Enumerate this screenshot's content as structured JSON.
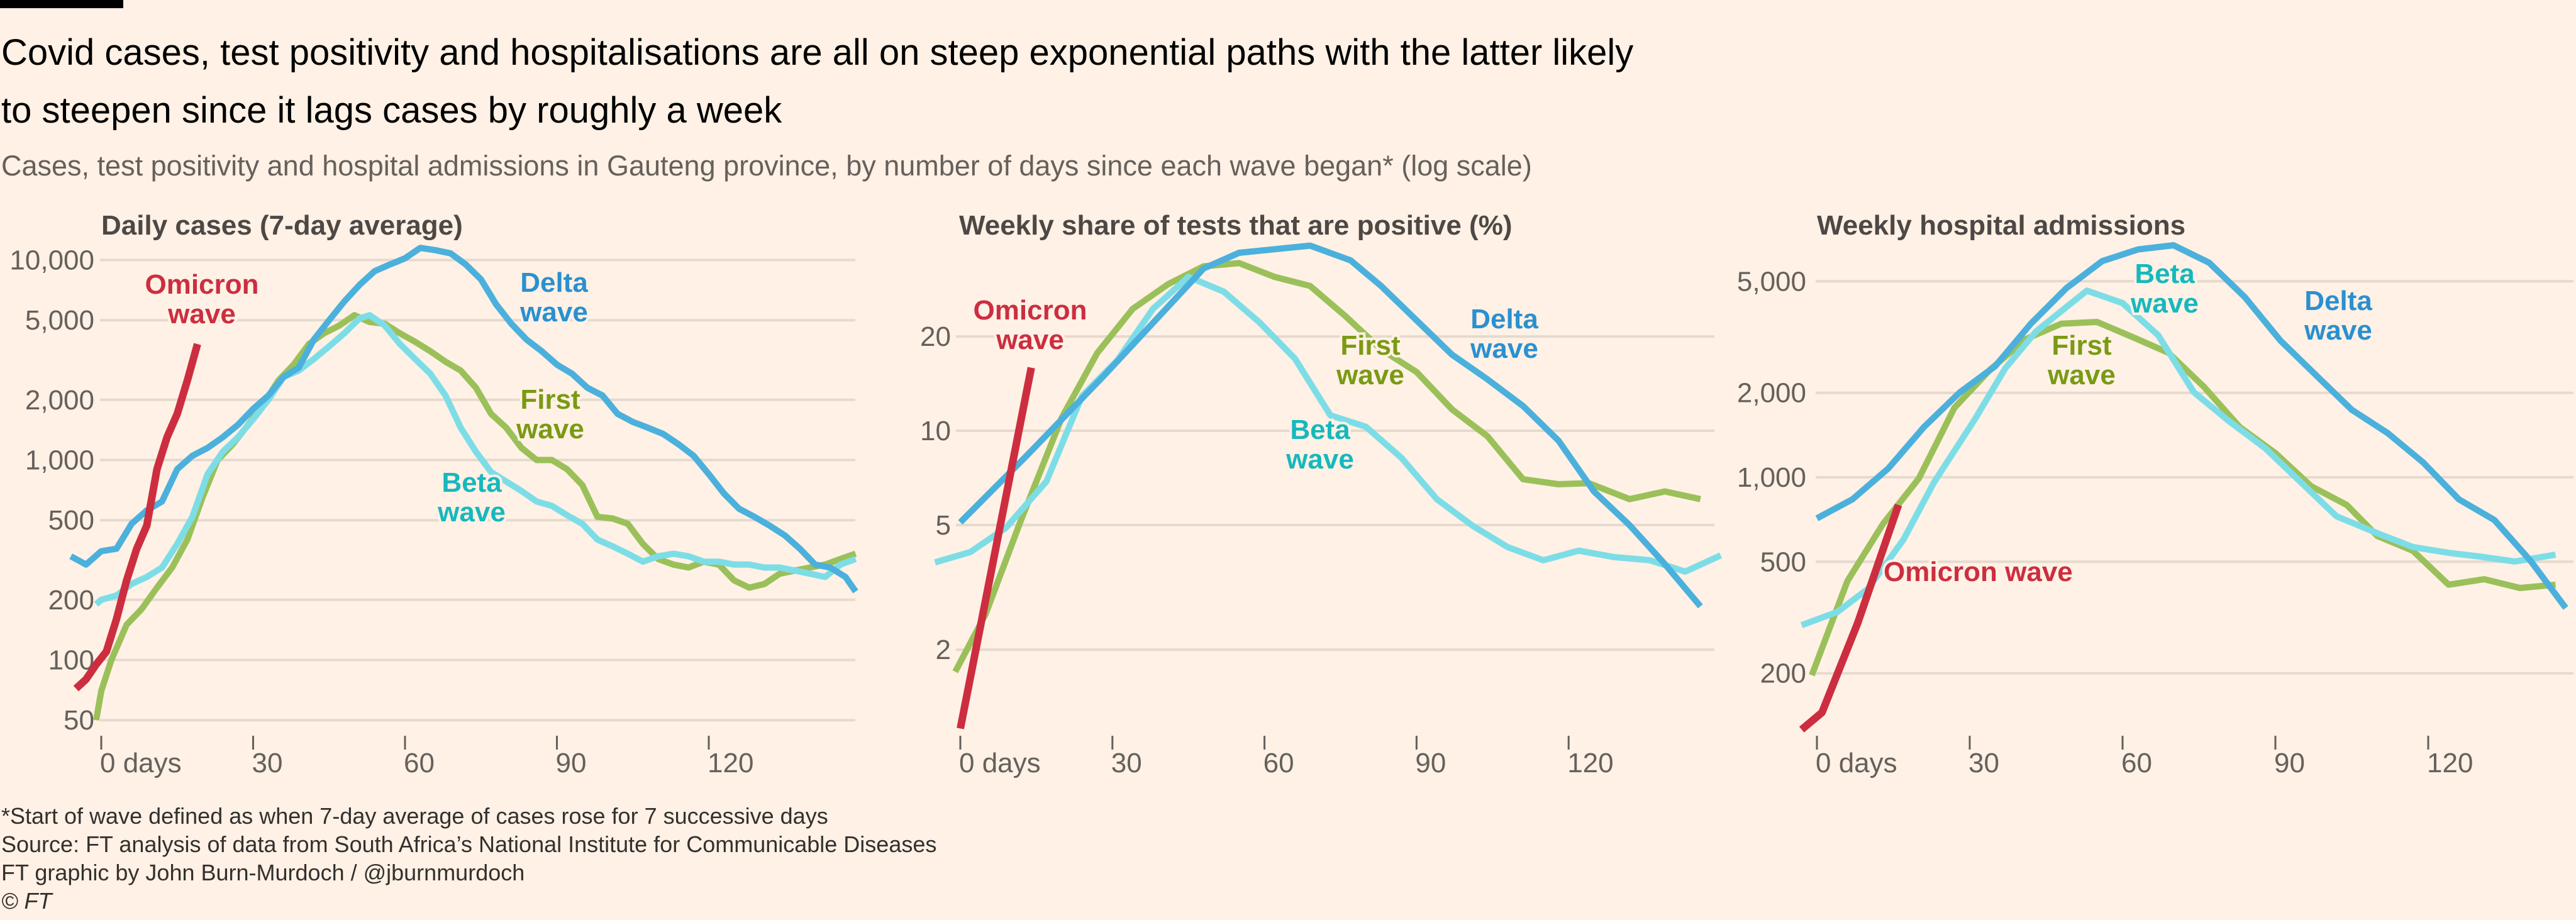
{
  "header": {
    "title": "Covid cases, test positivity and hospitalisations are all on steep exponential paths with the latter likely to steepen since it lags cases by roughly a week",
    "subtitle": "Cases, test positivity and hospital admissions in Gauteng province, by number of days since each wave began* (log scale)"
  },
  "footer": {
    "note": "*Start of wave defined as when 7-day average of cases rose for 7 successive days",
    "source": "Source: FT analysis of data from South Africa’s National Institute for Communicable Diseases",
    "credit": "FT graphic by John Burn-Murdoch / @jburnmurdoch",
    "copyright": "© FT"
  },
  "colors": {
    "background": "#fff1e5",
    "grid": "#e6d9ce",
    "delta_line": "#4bb0dc",
    "delta_label": "#2a90d0",
    "beta_line": "#7ddde7",
    "beta_label": "#16b8bd",
    "first_line": "#9bc05a",
    "first_label": "#7a9a14",
    "omicron_line": "#cc2e40",
    "omicron_label": "#cc2e40"
  },
  "chart_data": [
    {
      "type": "line",
      "title": "Daily cases (7-day average)",
      "yscale": "log",
      "ylim": [
        45,
        12000
      ],
      "yticks": [
        10000,
        5000,
        2000,
        1000,
        500,
        200,
        100,
        50
      ],
      "ytick_labels": [
        "10,000",
        "5,000",
        "2,000",
        "1,000",
        "500",
        "200",
        "100",
        "50"
      ],
      "xticks": [
        0,
        30,
        60,
        90,
        120
      ],
      "xtick_labels": [
        "0 days",
        "30",
        "60",
        "90",
        "120"
      ],
      "grid": true,
      "series": [
        {
          "name": "First wave",
          "key": "first",
          "label_lines": [
            "First",
            "wave"
          ],
          "x": [
            -1,
            0,
            2,
            5,
            8,
            11,
            14,
            17,
            20,
            23,
            26,
            29,
            32,
            35,
            38,
            41,
            44,
            47,
            50,
            53,
            56,
            59,
            62,
            65,
            68,
            71,
            74,
            77,
            80,
            83,
            86,
            89,
            92,
            95,
            98,
            101,
            104,
            107,
            110,
            113,
            116,
            119,
            122,
            125,
            128,
            131,
            134,
            137,
            140,
            143,
            146,
            149
          ],
          "y": [
            50,
            70,
            100,
            150,
            180,
            230,
            290,
            400,
            650,
            1000,
            1200,
            1500,
            1900,
            2500,
            3000,
            3800,
            4300,
            4700,
            5300,
            4900,
            4800,
            4300,
            3900,
            3500,
            3100,
            2800,
            2300,
            1700,
            1450,
            1150,
            1000,
            1000,
            900,
            750,
            520,
            510,
            480,
            380,
            320,
            300,
            290,
            310,
            300,
            250,
            230,
            240,
            270,
            280,
            290,
            300,
            320,
            340
          ]
        },
        {
          "name": "Beta wave",
          "key": "beta",
          "label_lines": [
            "Beta",
            "wave"
          ],
          "x": [
            -1,
            0,
            3,
            6,
            9,
            12,
            15,
            18,
            21,
            24,
            27,
            30,
            33,
            36,
            39,
            42,
            45,
            48,
            51,
            53,
            56,
            59,
            62,
            65,
            68,
            71,
            74,
            77,
            80,
            83,
            86,
            89,
            92,
            95,
            98,
            101,
            104,
            107,
            110,
            113,
            116,
            119,
            122,
            125,
            128,
            131,
            134,
            137,
            140,
            143,
            146,
            149
          ],
          "y": [
            190,
            200,
            210,
            240,
            260,
            290,
            380,
            520,
            850,
            1100,
            1300,
            1600,
            2000,
            2600,
            2800,
            3200,
            3700,
            4300,
            5100,
            5300,
            4700,
            3800,
            3200,
            2700,
            2100,
            1450,
            1100,
            870,
            780,
            700,
            620,
            590,
            530,
            480,
            400,
            370,
            340,
            310,
            330,
            340,
            330,
            310,
            310,
            300,
            300,
            290,
            290,
            280,
            270,
            260,
            300,
            320
          ]
        },
        {
          "name": "Delta wave",
          "key": "delta",
          "label_lines": [
            "Delta",
            "wave"
          ],
          "x": [
            -6,
            -3,
            0,
            3,
            6,
            9,
            12,
            15,
            18,
            21,
            24,
            27,
            30,
            33,
            36,
            39,
            42,
            45,
            48,
            51,
            54,
            57,
            60,
            63,
            66,
            69,
            72,
            75,
            78,
            81,
            84,
            87,
            90,
            93,
            96,
            99,
            102,
            105,
            108,
            111,
            114,
            117,
            120,
            123,
            126,
            129,
            132,
            135,
            138,
            141,
            144,
            147,
            149
          ],
          "y": [
            330,
            300,
            350,
            360,
            480,
            560,
            620,
            900,
            1050,
            1150,
            1300,
            1500,
            1800,
            2100,
            2600,
            2900,
            4000,
            5000,
            6200,
            7500,
            8800,
            9500,
            10200,
            11500,
            11200,
            10800,
            9500,
            8000,
            6000,
            4800,
            4000,
            3500,
            3000,
            2700,
            2300,
            2100,
            1700,
            1550,
            1450,
            1350,
            1200,
            1050,
            850,
            680,
            570,
            520,
            470,
            420,
            360,
            300,
            290,
            260,
            220
          ]
        },
        {
          "name": "Omicron wave",
          "key": "omicron",
          "label_lines": [
            "Omicron",
            "wave"
          ],
          "x": [
            -5,
            -3,
            -1,
            1,
            3,
            5,
            7,
            9,
            11,
            13,
            15,
            17,
            19
          ],
          "y": [
            72,
            80,
            95,
            110,
            160,
            250,
            360,
            470,
            900,
            1300,
            1700,
            2500,
            3800
          ]
        }
      ]
    },
    {
      "type": "line",
      "title": "Weekly share of tests that are positive (%)",
      "yscale": "log",
      "ylim": [
        1.1,
        40
      ],
      "yticks": [
        20,
        10,
        5,
        2
      ],
      "ytick_labels": [
        "20",
        "10",
        "5",
        "2"
      ],
      "xticks": [
        0,
        30,
        60,
        90,
        120
      ],
      "xtick_labels": [
        "0 days",
        "30",
        "60",
        "90",
        "120"
      ],
      "grid": true,
      "series": [
        {
          "name": "First wave",
          "key": "first",
          "label_lines": [
            "First",
            "wave"
          ],
          "x": [
            -1,
            5,
            12,
            20,
            27,
            34,
            41,
            48,
            55,
            62,
            69,
            76,
            83,
            90,
            97,
            104,
            111,
            118,
            124,
            132,
            139,
            146
          ],
          "y": [
            1.7,
            2.6,
            5.2,
            11,
            17.7,
            24.5,
            29.4,
            33.5,
            34.3,
            31,
            29,
            23.2,
            18.2,
            15.4,
            11.7,
            9.6,
            7.0,
            6.75,
            6.8,
            6.05,
            6.4,
            6.05
          ]
        },
        {
          "name": "Beta wave",
          "key": "beta",
          "label_lines": [
            "Beta",
            "wave"
          ],
          "x": [
            -5,
            2,
            9,
            17,
            24,
            31,
            38,
            45,
            52,
            59,
            66,
            73,
            80,
            87,
            94,
            101,
            108,
            115,
            122,
            129,
            136,
            143,
            150
          ],
          "y": [
            3.8,
            4.1,
            4.9,
            6.9,
            12.9,
            16.8,
            24.5,
            31,
            27.8,
            22.2,
            17,
            11.2,
            10.3,
            8.2,
            6.05,
            4.98,
            4.25,
            3.86,
            4.14,
            3.95,
            3.86,
            3.55,
            4.0
          ]
        },
        {
          "name": "Delta wave",
          "key": "delta",
          "label_lines": [
            "Delta",
            "wave"
          ],
          "x": [
            0,
            13,
            28,
            48,
            55,
            62,
            69,
            77,
            83,
            97,
            104,
            111,
            118,
            125,
            132,
            139,
            146
          ],
          "y": [
            5.1,
            8.3,
            14.8,
            33,
            37,
            38,
            39,
            35,
            29,
            17.5,
            14.6,
            12,
            9.3,
            6.4,
            5.0,
            3.75,
            2.75
          ]
        },
        {
          "name": "Omicron wave",
          "key": "omicron",
          "label_lines": [
            "Omicron",
            "wave"
          ],
          "x": [
            0,
            14
          ],
          "y": [
            1.12,
            15.9
          ]
        }
      ]
    },
    {
      "type": "line",
      "title": "Weekly hospital admissions",
      "yscale": "log",
      "ylim": [
        120,
        7500
      ],
      "yticks": [
        5000,
        2000,
        1000,
        500,
        200
      ],
      "ytick_labels": [
        "5,000",
        "2,000",
        "1,000",
        "500",
        "200"
      ],
      "xticks": [
        0,
        30,
        60,
        90,
        120
      ],
      "xtick_labels": [
        "0 days",
        "30",
        "60",
        "90",
        "120"
      ],
      "grid": true,
      "series": [
        {
          "name": "First wave",
          "key": "first",
          "label_lines": [
            "First",
            "wave"
          ],
          "x": [
            -1,
            6,
            13,
            20,
            27,
            34,
            41,
            48,
            55,
            62,
            69,
            76,
            83,
            90,
            97,
            104,
            110,
            117,
            124,
            131,
            138,
            145
          ],
          "y": [
            197,
            427,
            683,
            990,
            1770,
            2420,
            3110,
            3530,
            3580,
            3160,
            2780,
            2100,
            1510,
            1220,
            930,
            797,
            618,
            547,
            414,
            433,
            403,
            414
          ]
        },
        {
          "name": "Beta wave",
          "key": "beta",
          "label_lines": [
            "Beta",
            "wave"
          ],
          "x": [
            -3,
            4,
            10,
            17,
            23,
            31,
            37,
            43,
            49,
            53,
            60,
            67,
            74,
            81,
            88,
            95,
            102,
            110,
            117,
            124,
            130,
            137,
            145
          ],
          "y": [
            297,
            331,
            400,
            600,
            960,
            1610,
            2450,
            3310,
            4050,
            4630,
            4180,
            3210,
            2010,
            1580,
            1270,
            960,
            726,
            632,
            564,
            538,
            522,
            501,
            530
          ]
        },
        {
          "name": "Delta wave",
          "key": "delta",
          "label_lines": [
            "Delta",
            "wave"
          ],
          "x": [
            0,
            7,
            14,
            21,
            28,
            35,
            42,
            49,
            56,
            63,
            70,
            77,
            84,
            91,
            98,
            105,
            112,
            119,
            126,
            133,
            140,
            147
          ],
          "y": [
            714,
            835,
            1075,
            1510,
            2005,
            2490,
            3530,
            4730,
            5900,
            6490,
            6720,
            5820,
            4390,
            3070,
            2310,
            1740,
            1440,
            1130,
            835,
            704,
            506,
            342
          ]
        },
        {
          "name": "Omicron wave",
          "key": "omicron",
          "label_lines": [
            "Omicron wave"
          ],
          "x": [
            -3,
            1,
            8,
            16
          ],
          "y": [
            126,
            145,
            302,
            797
          ]
        }
      ]
    }
  ]
}
